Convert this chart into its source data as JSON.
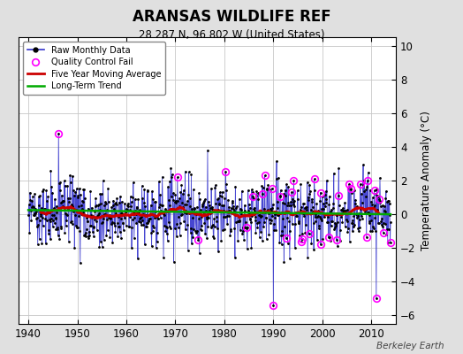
{
  "title": "ARANSAS WILDLIFE REF",
  "subtitle": "28.287 N, 96.802 W (United States)",
  "ylabel": "Temperature Anomaly (°C)",
  "credit": "Berkeley Earth",
  "xlim": [
    1938,
    2015
  ],
  "ylim": [
    -6.5,
    10.5
  ],
  "yticks": [
    -6,
    -4,
    -2,
    0,
    2,
    4,
    6,
    8,
    10
  ],
  "xticks": [
    1940,
    1950,
    1960,
    1970,
    1980,
    1990,
    2000,
    2010
  ],
  "bg_color": "#e0e0e0",
  "plot_bg_color": "#ffffff",
  "grid_color": "#c8c8c8",
  "line_color": "#3333cc",
  "ma_color": "#cc0000",
  "trend_color": "#00aa00",
  "qc_color": "#ff00ff",
  "start_year": 1940,
  "end_year": 2013,
  "seed": 37
}
